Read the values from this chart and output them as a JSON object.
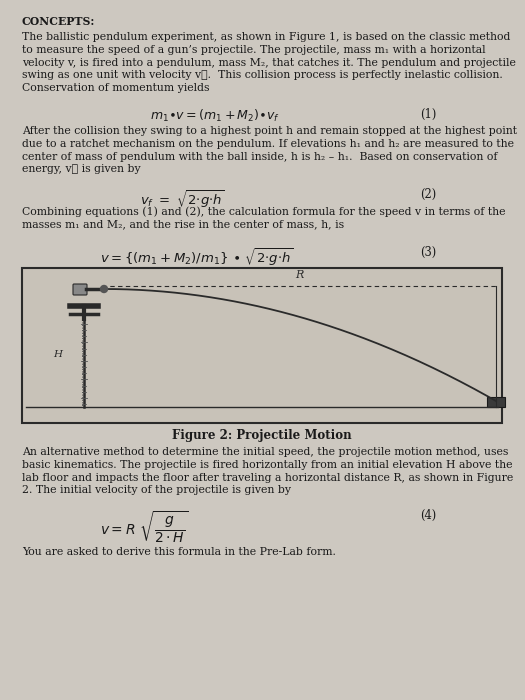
{
  "bg_color": "#cdc8c0",
  "text_color": "#1a1a1a",
  "title": "CONCEPTS:",
  "para1": "The ballistic pendulum experiment, as shown in Figure 1, is based on the classic method\nto measure the speed of a gun’s projectile. The projectile, mass m₁ with a horizontal\nvelocity v, is fired into a pendulum, mass M₂, that catches it. The pendulum and projectile\nswing as one unit with velocity v⁦.  This collision process is perfectly inelastic collision.\nConservation of momentum yields",
  "eq1_num": "(1)",
  "para2": "After the collision they swing to a highest point h and remain stopped at the highest point\ndue to a ratchet mechanism on the pendulum. If elevations h₁ and h₂ are measured to the\ncenter of mass of pendulum with the ball inside, h is h₂ – h₁.  Based on conservation of\nenergy, v⁦ is given by",
  "eq2_num": "(2)",
  "para3": "Combining equations (1) and (2), the calculation formula for the speed v in terms of the\nmasses m₁ and M₂, and the rise in the center of mass, h, is",
  "eq3_num": "(3)",
  "fig_caption": "Figure 2: Projectile Motion",
  "para4": "An alternative method to determine the initial speed, the projectile motion method, uses\nbasic kinematics. The projectile is fired horizontally from an initial elevation H above the\nlab floor and impacts the floor after traveling a horizontal distance R, as shown in Figure\n2. The initial velocity of the projectile is given by",
  "eq4_num": "(4)",
  "para5": "You are asked to derive this formula in the Pre-Lab form."
}
